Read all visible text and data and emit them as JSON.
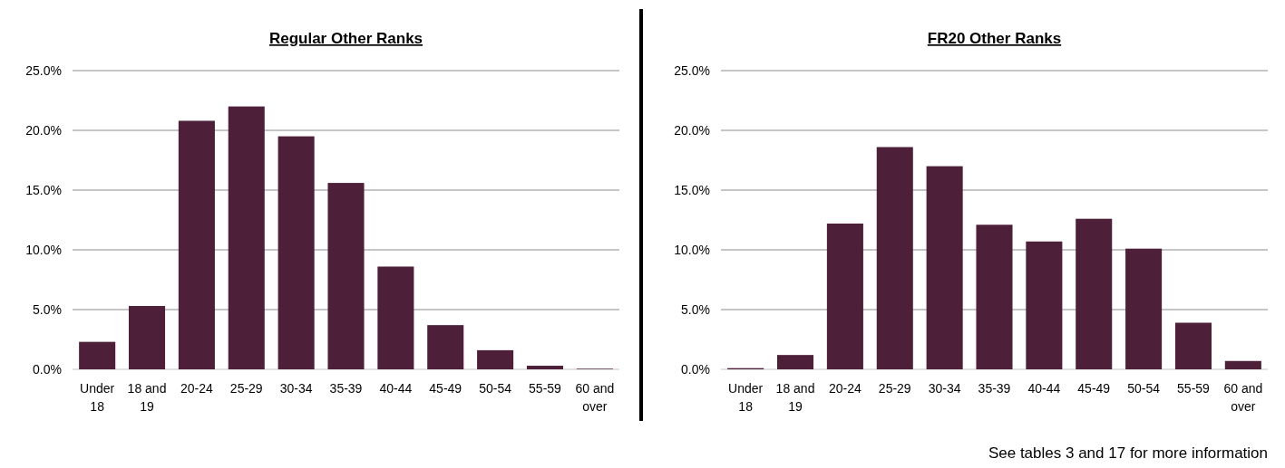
{
  "chart_data": [
    {
      "type": "bar",
      "title": "Regular Other Ranks",
      "categories": [
        "Under 18",
        "18 and 19",
        "20-24",
        "25-29",
        "30-34",
        "35-39",
        "40-44",
        "45-49",
        "50-54",
        "55-59",
        "60 and over"
      ],
      "values": [
        2.3,
        5.3,
        20.8,
        22.0,
        19.5,
        15.6,
        8.6,
        3.7,
        1.6,
        0.3,
        0.05
      ],
      "color": "#4d1f38",
      "ylim": [
        0,
        25
      ],
      "yticks": [
        {
          "value": 0,
          "label": "0.0%"
        },
        {
          "value": 5,
          "label": "5.0%"
        },
        {
          "value": 10,
          "label": "10.0%"
        },
        {
          "value": 15,
          "label": "15.0%"
        },
        {
          "value": 20,
          "label": "20.0%"
        },
        {
          "value": 25,
          "label": "25.0%"
        }
      ],
      "grid": "y"
    },
    {
      "type": "bar",
      "title": "FR20 Other Ranks",
      "categories": [
        "Under 18",
        "18 and 19",
        "20-24",
        "25-29",
        "30-34",
        "35-39",
        "40-44",
        "45-49",
        "50-54",
        "55-59",
        "60 and over"
      ],
      "values": [
        0.1,
        1.2,
        12.2,
        18.6,
        17.0,
        12.1,
        10.7,
        12.6,
        10.1,
        3.9,
        0.7
      ],
      "color": "#4d1f38",
      "ylim": [
        0,
        25
      ],
      "yticks": [
        {
          "value": 0,
          "label": "0.0%"
        },
        {
          "value": 5,
          "label": "5.0%"
        },
        {
          "value": 10,
          "label": "10.0%"
        },
        {
          "value": 15,
          "label": "15.0%"
        },
        {
          "value": 20,
          "label": "20.0%"
        },
        {
          "value": 25,
          "label": "25.0%"
        }
      ],
      "grid": "y",
      "annotations": [
        "See tables 3 and 17 for more information"
      ]
    }
  ]
}
